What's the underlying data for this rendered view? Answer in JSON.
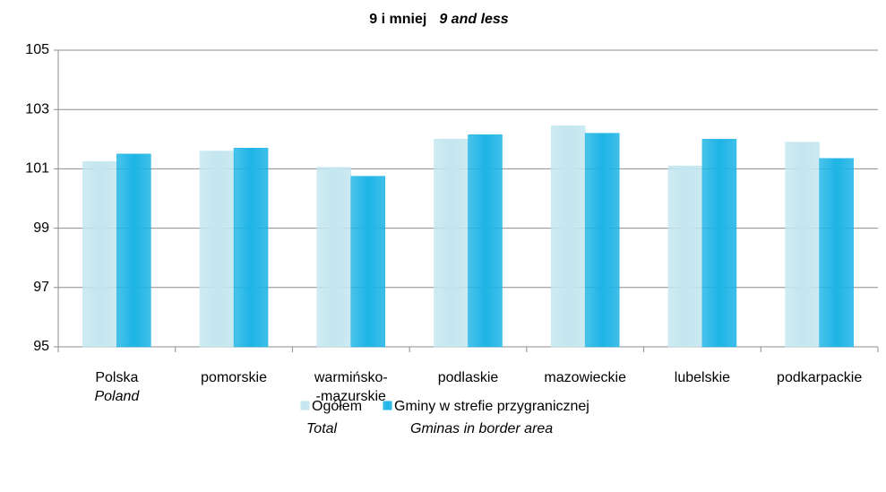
{
  "chart_data": {
    "type": "bar",
    "title": "9 i mniej",
    "title_en": "9 and less",
    "categories": [
      {
        "lines": [
          "Polska"
        ],
        "english": "Poland"
      },
      {
        "lines": [
          "pomorskie"
        ]
      },
      {
        "lines": [
          "warmińsko-",
          "-mazurskie"
        ]
      },
      {
        "lines": [
          "podlaskie"
        ]
      },
      {
        "lines": [
          "mazowieckie"
        ]
      },
      {
        "lines": [
          "lubelskie"
        ]
      },
      {
        "lines": [
          "podkarpackie"
        ]
      }
    ],
    "series": [
      {
        "name": "Ogółem",
        "name_en": "Total",
        "color": "#c3e6ef",
        "values": [
          101.25,
          101.6,
          101.05,
          102.0,
          102.45,
          101.1,
          101.9
        ]
      },
      {
        "name": "Gminy w strefie przygranicznej",
        "name_en": "Gminas in border area",
        "color": "#1db4e6",
        "values": [
          101.5,
          101.7,
          100.75,
          102.15,
          102.2,
          102.0,
          101.35
        ]
      }
    ],
    "ylim": [
      95,
      105
    ],
    "yticks": [
      95,
      97,
      99,
      101,
      103,
      105
    ],
    "grid": true,
    "legend": "bottom"
  }
}
